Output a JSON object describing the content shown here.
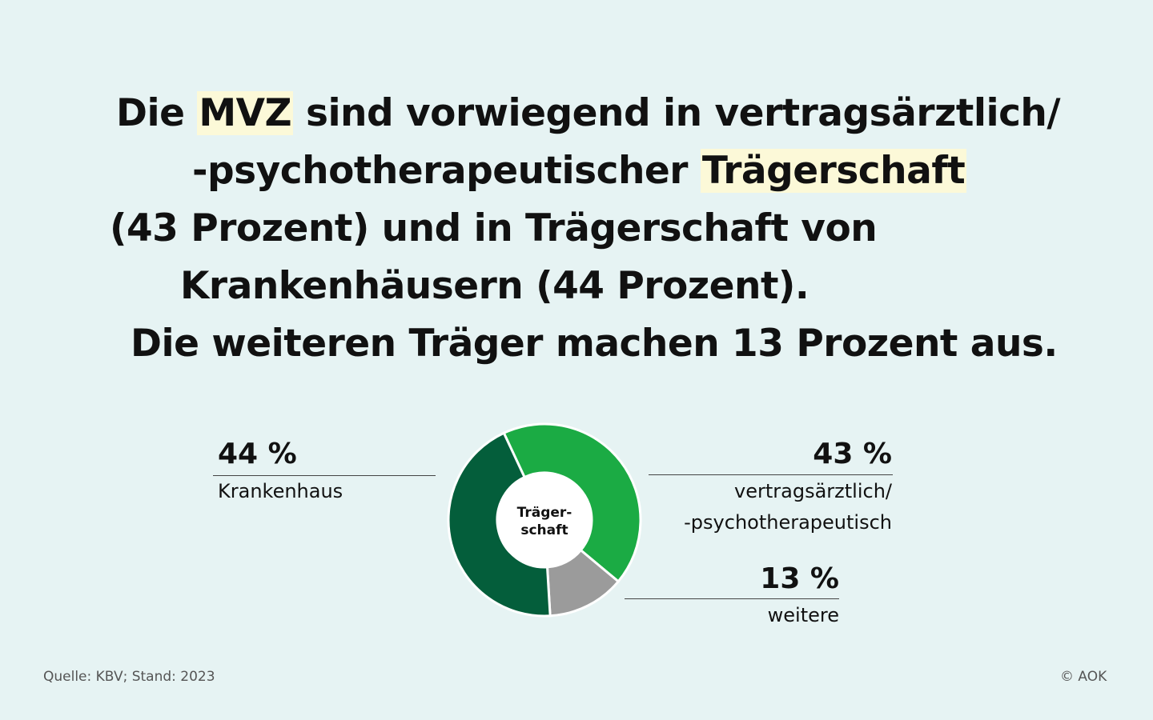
{
  "headline": {
    "line1_a": "Die ",
    "line1_hl": "MVZ",
    "line1_b": " sind vorwiegend in vertragsärztlich/",
    "line2_a": "-psychotherapeutischer ",
    "line2_hl": "Trägerschaft",
    "line3": "(43 Prozent) und in Trägerschaft von",
    "line4": "Krankenhäusern (44 Prozent).",
    "line5": "Die weiteren Träger machen 13 Prozent aus."
  },
  "chart_data": {
    "type": "pie",
    "center_label_1": "Träger-",
    "center_label_2": "schaft",
    "slices": [
      {
        "label_1": "vertragsärztlich/",
        "label_2": "-psychotherapeutisch",
        "value": 43,
        "value_label": "43 %",
        "color": "#1bab44"
      },
      {
        "label_1": "weitere",
        "label_2": "",
        "value": 13,
        "value_label": "13 %",
        "color": "#9b9b9b"
      },
      {
        "label_1": "Krankenhaus",
        "label_2": "",
        "value": 44,
        "value_label": "44 %",
        "color": "#045e3b"
      }
    ]
  },
  "footer": {
    "source": "Quelle: KBV; Stand: 2023",
    "copyright": "© AOK"
  }
}
